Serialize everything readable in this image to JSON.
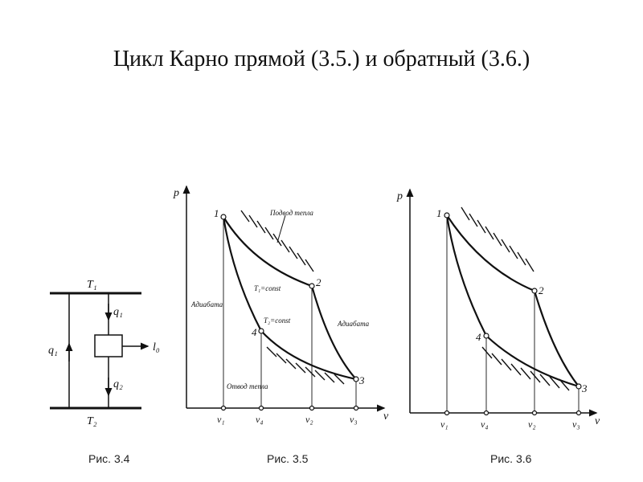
{
  "slide": {
    "title": "Цикл Карно прямой (3.5.) и обратный (3.6.)"
  },
  "fig34": {
    "caption": "Рис. 3.4",
    "t1": "T₁",
    "t2": "T₂",
    "q1_vertical": "q₁",
    "q1": "q₁",
    "q2": "q₂",
    "l0": "l₀"
  },
  "fig35": {
    "caption": "Рис. 3.5",
    "p_axis": "p",
    "v_axis": "v",
    "points": [
      "1",
      "2",
      "3",
      "4"
    ],
    "ticks": [
      "v₁",
      "v₄",
      "v₂",
      "v₃"
    ],
    "heat_in": "Подвод тепла",
    "heat_out": "Отвод тепла",
    "iso_t1": "T₁=const",
    "iso_t2": "T₂=const",
    "adiabat_left": "Адиабата",
    "adiabat_right": "Адиабата"
  },
  "fig36": {
    "caption": "Рис. 3.6",
    "p_axis": "p",
    "v_axis": "v",
    "points": [
      "1",
      "2",
      "3",
      "4"
    ],
    "ticks": [
      "v₁",
      "v₄",
      "v₂",
      "v₃"
    ]
  }
}
